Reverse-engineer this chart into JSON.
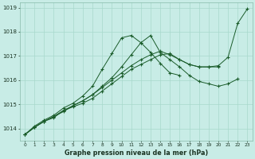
{
  "xlabel": "Graphe pression niveau de la mer (hPa)",
  "bg_color": "#c8ece6",
  "grid_color": "#a8d8cc",
  "line_color": "#1a5c2a",
  "lines": [
    [
      1013.75,
      1014.05,
      1014.3,
      1014.45,
      1014.75,
      1014.9,
      1015.05,
      1015.25,
      1015.55,
      1015.85,
      1016.15,
      1016.45,
      1016.65,
      1016.85,
      1017.05,
      1017.1,
      1016.85,
      1016.65,
      1016.55,
      1016.55,
      1016.6,
      1016.95,
      1018.35,
      1018.95
    ],
    [
      1013.75,
      1014.05,
      1014.3,
      1014.5,
      1014.7,
      1014.95,
      1015.15,
      1015.4,
      1015.75,
      1016.1,
      1016.55,
      1017.05,
      1017.55,
      1017.85,
      1017.15,
      1016.85,
      1016.55,
      1016.2,
      1015.95,
      1015.85,
      1015.75,
      1015.85,
      1016.05,
      null
    ],
    [
      1013.75,
      1014.1,
      1014.35,
      1014.55,
      1014.85,
      1015.05,
      1015.35,
      1015.75,
      1016.45,
      1017.1,
      1017.75,
      1017.85,
      1017.55,
      1017.15,
      1016.7,
      1016.3,
      1016.2,
      null,
      null,
      null,
      null,
      null,
      null,
      null
    ],
    [
      1013.75,
      1014.05,
      1014.3,
      1014.5,
      1014.75,
      1014.95,
      1015.15,
      1015.4,
      1015.7,
      1016.0,
      1016.3,
      1016.6,
      1016.85,
      1017.05,
      1017.2,
      1017.05,
      1016.85,
      1016.65,
      1016.55,
      1016.55,
      1016.55,
      null,
      null,
      null
    ]
  ],
  "ylim": [
    1013.5,
    1019.2
  ],
  "yticks": [
    1014,
    1015,
    1016,
    1017,
    1018,
    1019
  ],
  "xlim": [
    -0.5,
    23.5
  ],
  "xticks": [
    0,
    1,
    2,
    3,
    4,
    5,
    6,
    7,
    8,
    9,
    10,
    11,
    12,
    13,
    14,
    15,
    16,
    17,
    18,
    19,
    20,
    21,
    22,
    23
  ]
}
